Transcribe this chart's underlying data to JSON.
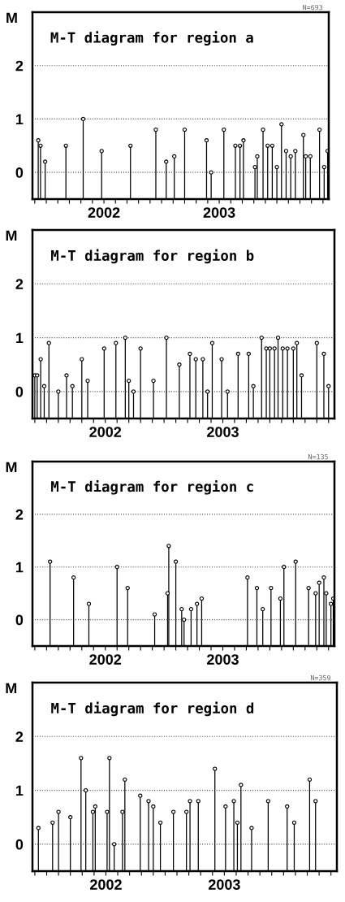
{
  "chart_data": [
    {
      "type": "lollipop",
      "title": "M-T diagram for region a",
      "ylabel": "M",
      "annotations": [
        "N=693"
      ],
      "marker": "circle",
      "grid": "y",
      "ylim": [
        -0.5,
        3
      ],
      "yticks": [
        0,
        1,
        2
      ],
      "xlim": [
        2001.88,
        2004.45
      ],
      "xticks": [
        {
          "value": 2001.9,
          "label": null
        },
        {
          "value": 2002.0,
          "label": null
        },
        {
          "value": 2002.1,
          "label": null
        },
        {
          "value": 2002.2,
          "label": null
        },
        {
          "value": 2002.3,
          "label": null
        },
        {
          "value": 2002.4,
          "label": null
        },
        {
          "value": 2002.5,
          "label": "2002"
        },
        {
          "value": 2002.6,
          "label": null
        },
        {
          "value": 2002.7,
          "label": null
        },
        {
          "value": 2002.8,
          "label": null
        },
        {
          "value": 2002.9,
          "label": null
        },
        {
          "value": 2003.0,
          "label": null
        },
        {
          "value": 2003.1,
          "label": null
        },
        {
          "value": 2003.2,
          "label": null
        },
        {
          "value": 2003.3,
          "label": null
        },
        {
          "value": 2003.4,
          "label": null
        },
        {
          "value": 2003.5,
          "label": "2003"
        },
        {
          "value": 2003.6,
          "label": null
        },
        {
          "value": 2003.7,
          "label": null
        },
        {
          "value": 2003.8,
          "label": null
        },
        {
          "value": 2003.9,
          "label": null
        },
        {
          "value": 2004.0,
          "label": null
        },
        {
          "value": 2004.1,
          "label": null
        },
        {
          "value": 2004.2,
          "label": null
        },
        {
          "value": 2004.3,
          "label": null
        },
        {
          "value": 2004.4,
          "label": null
        }
      ],
      "series": [
        {
          "color": "#000000",
          "x": [
            2001.93,
            2001.95,
            2001.99,
            2002.17,
            2002.32,
            2002.48,
            2002.73,
            2002.95,
            2003.04,
            2003.11,
            2003.2,
            2003.39,
            2003.43,
            2003.54,
            2003.64,
            2003.68,
            2003.71,
            2003.81,
            2003.83,
            2003.88,
            2003.92,
            2003.96,
            2004.0,
            2004.04,
            2004.08,
            2004.12,
            2004.16,
            2004.23,
            2004.25,
            2004.29,
            2004.37,
            2004.41,
            2004.44
          ],
          "values": [
            0.6,
            0.5,
            0.2,
            0.5,
            1.0,
            0.4,
            0.5,
            0.8,
            0.2,
            0.3,
            0.8,
            0.6,
            0.0,
            0.8,
            0.5,
            0.5,
            0.6,
            0.1,
            0.3,
            0.8,
            0.5,
            0.5,
            0.1,
            0.9,
            0.4,
            0.3,
            0.4,
            0.7,
            0.3,
            0.3,
            0.8,
            0.1,
            0.4
          ]
        }
      ]
    },
    {
      "type": "lollipop",
      "title": "M-T diagram for region b",
      "ylabel": "M",
      "marker": "circle",
      "grid": "y",
      "ylim": [
        -0.5,
        3
      ],
      "yticks": [
        0,
        1,
        2
      ],
      "xlim": [
        2001.88,
        2004.45
      ],
      "xticks": [
        {
          "value": 2001.9,
          "label": null
        },
        {
          "value": 2002.0,
          "label": null
        },
        {
          "value": 2002.1,
          "label": null
        },
        {
          "value": 2002.2,
          "label": null
        },
        {
          "value": 2002.3,
          "label": null
        },
        {
          "value": 2002.4,
          "label": null
        },
        {
          "value": 2002.5,
          "label": "2002"
        },
        {
          "value": 2002.6,
          "label": null
        },
        {
          "value": 2002.7,
          "label": null
        },
        {
          "value": 2002.8,
          "label": null
        },
        {
          "value": 2002.9,
          "label": null
        },
        {
          "value": 2003.0,
          "label": null
        },
        {
          "value": 2003.1,
          "label": null
        },
        {
          "value": 2003.2,
          "label": null
        },
        {
          "value": 2003.3,
          "label": null
        },
        {
          "value": 2003.4,
          "label": null
        },
        {
          "value": 2003.5,
          "label": "2003"
        },
        {
          "value": 2003.6,
          "label": null
        },
        {
          "value": 2003.7,
          "label": null
        },
        {
          "value": 2003.8,
          "label": null
        },
        {
          "value": 2003.9,
          "label": null
        },
        {
          "value": 2004.0,
          "label": null
        },
        {
          "value": 2004.1,
          "label": null
        },
        {
          "value": 2004.2,
          "label": null
        },
        {
          "value": 2004.3,
          "label": null
        },
        {
          "value": 2004.4,
          "label": null
        }
      ],
      "series": [
        {
          "color": "#000000",
          "x": [
            2001.9,
            2001.92,
            2001.95,
            2001.98,
            2002.02,
            2002.1,
            2002.17,
            2002.22,
            2002.3,
            2002.35,
            2002.49,
            2002.59,
            2002.67,
            2002.7,
            2002.74,
            2002.8,
            2002.91,
            2003.02,
            2003.13,
            2003.22,
            2003.27,
            2003.33,
            2003.37,
            2003.41,
            2003.49,
            2003.54,
            2003.63,
            2003.72,
            2003.76,
            2003.83,
            2003.87,
            2003.9,
            2003.94,
            2003.97,
            2004.01,
            2004.05,
            2004.1,
            2004.13,
            2004.17,
            2004.3,
            2004.36,
            2004.4
          ],
          "values": [
            0.3,
            0.3,
            0.6,
            0.1,
            0.9,
            0.0,
            0.3,
            0.1,
            0.6,
            0.2,
            0.8,
            0.9,
            1.0,
            0.2,
            0.0,
            0.8,
            0.2,
            1.0,
            0.5,
            0.7,
            0.6,
            0.6,
            0.0,
            0.9,
            0.6,
            0.0,
            0.7,
            0.7,
            0.1,
            1.0,
            0.8,
            0.8,
            0.8,
            1.0,
            0.8,
            0.8,
            0.8,
            0.9,
            0.3,
            0.9,
            0.7,
            0.1
          ]
        }
      ]
    },
    {
      "type": "lollipop",
      "title": "M-T diagram for region c",
      "ylabel": "M",
      "annotations": [
        "N=135"
      ],
      "marker": "circle",
      "grid": "y",
      "ylim": [
        -0.5,
        3
      ],
      "yticks": [
        0,
        1,
        2
      ],
      "xlim": [
        2001.88,
        2004.45
      ],
      "xticks": [
        {
          "value": 2001.9,
          "label": null
        },
        {
          "value": 2002.0,
          "label": null
        },
        {
          "value": 2002.1,
          "label": null
        },
        {
          "value": 2002.2,
          "label": null
        },
        {
          "value": 2002.3,
          "label": null
        },
        {
          "value": 2002.4,
          "label": null
        },
        {
          "value": 2002.5,
          "label": "2002"
        },
        {
          "value": 2002.6,
          "label": null
        },
        {
          "value": 2002.7,
          "label": null
        },
        {
          "value": 2002.8,
          "label": null
        },
        {
          "value": 2002.9,
          "label": null
        },
        {
          "value": 2003.0,
          "label": null
        },
        {
          "value": 2003.1,
          "label": null
        },
        {
          "value": 2003.2,
          "label": null
        },
        {
          "value": 2003.3,
          "label": null
        },
        {
          "value": 2003.4,
          "label": null
        },
        {
          "value": 2003.5,
          "label": "2003"
        },
        {
          "value": 2003.6,
          "label": null
        },
        {
          "value": 2003.7,
          "label": null
        },
        {
          "value": 2003.8,
          "label": null
        },
        {
          "value": 2003.9,
          "label": null
        },
        {
          "value": 2004.0,
          "label": null
        },
        {
          "value": 2004.1,
          "label": null
        },
        {
          "value": 2004.2,
          "label": null
        },
        {
          "value": 2004.3,
          "label": null
        },
        {
          "value": 2004.4,
          "label": null
        }
      ],
      "series": [
        {
          "color": "#000000",
          "x": [
            2002.03,
            2002.23,
            2002.36,
            2002.6,
            2002.69,
            2002.92,
            2003.03,
            2003.04,
            2003.1,
            2003.15,
            2003.17,
            2003.23,
            2003.28,
            2003.32,
            2003.71,
            2003.79,
            2003.84,
            2003.91,
            2003.99,
            2004.02,
            2004.12,
            2004.23,
            2004.29,
            2004.32,
            2004.36,
            2004.38,
            2004.42,
            2004.44
          ],
          "values": [
            1.1,
            0.8,
            0.3,
            1.0,
            0.6,
            0.1,
            0.5,
            1.4,
            1.1,
            0.2,
            0.0,
            0.2,
            0.3,
            0.4,
            0.8,
            0.6,
            0.2,
            0.6,
            0.4,
            1.0,
            1.1,
            0.6,
            0.5,
            0.7,
            0.8,
            0.5,
            0.3,
            0.4
          ]
        }
      ]
    },
    {
      "type": "lollipop",
      "title": "M-T diagram for region d",
      "ylabel": "M",
      "annotations": [
        "N=359"
      ],
      "marker": "circle",
      "grid": "y",
      "ylim": [
        -0.5,
        3
      ],
      "yticks": [
        0,
        1,
        2
      ],
      "xlim": [
        2001.88,
        2004.45
      ],
      "xticks": [
        {
          "value": 2001.9,
          "label": null
        },
        {
          "value": 2002.0,
          "label": null
        },
        {
          "value": 2002.1,
          "label": null
        },
        {
          "value": 2002.2,
          "label": null
        },
        {
          "value": 2002.3,
          "label": null
        },
        {
          "value": 2002.4,
          "label": null
        },
        {
          "value": 2002.5,
          "label": "2002"
        },
        {
          "value": 2002.6,
          "label": null
        },
        {
          "value": 2002.7,
          "label": null
        },
        {
          "value": 2002.8,
          "label": null
        },
        {
          "value": 2002.9,
          "label": null
        },
        {
          "value": 2003.0,
          "label": null
        },
        {
          "value": 2003.1,
          "label": null
        },
        {
          "value": 2003.2,
          "label": null
        },
        {
          "value": 2003.3,
          "label": null
        },
        {
          "value": 2003.4,
          "label": null
        },
        {
          "value": 2003.5,
          "label": "2003"
        },
        {
          "value": 2003.6,
          "label": null
        },
        {
          "value": 2003.7,
          "label": null
        },
        {
          "value": 2003.8,
          "label": null
        },
        {
          "value": 2003.9,
          "label": null
        },
        {
          "value": 2004.0,
          "label": null
        },
        {
          "value": 2004.1,
          "label": null
        },
        {
          "value": 2004.2,
          "label": null
        },
        {
          "value": 2004.3,
          "label": null
        },
        {
          "value": 2004.4,
          "label": null
        }
      ],
      "series": [
        {
          "color": "#000000",
          "x": [
            2001.93,
            2002.05,
            2002.1,
            2002.2,
            2002.29,
            2002.33,
            2002.39,
            2002.41,
            2002.51,
            2002.53,
            2002.57,
            2002.64,
            2002.66,
            2002.79,
            2002.86,
            2002.9,
            2002.96,
            2003.07,
            2003.18,
            2003.21,
            2003.28,
            2003.42,
            2003.51,
            2003.58,
            2003.61,
            2003.64,
            2003.73,
            2003.87,
            2004.03,
            2004.09,
            2004.22,
            2004.27
          ],
          "values": [
            0.3,
            0.4,
            0.6,
            0.5,
            1.6,
            1.0,
            0.6,
            0.7,
            0.6,
            1.6,
            0.0,
            0.6,
            1.2,
            0.9,
            0.8,
            0.7,
            0.4,
            0.6,
            0.6,
            0.8,
            0.8,
            1.4,
            0.7,
            0.8,
            0.4,
            1.1,
            0.3,
            0.8,
            0.7,
            0.4,
            1.2,
            0.8
          ]
        }
      ]
    }
  ]
}
